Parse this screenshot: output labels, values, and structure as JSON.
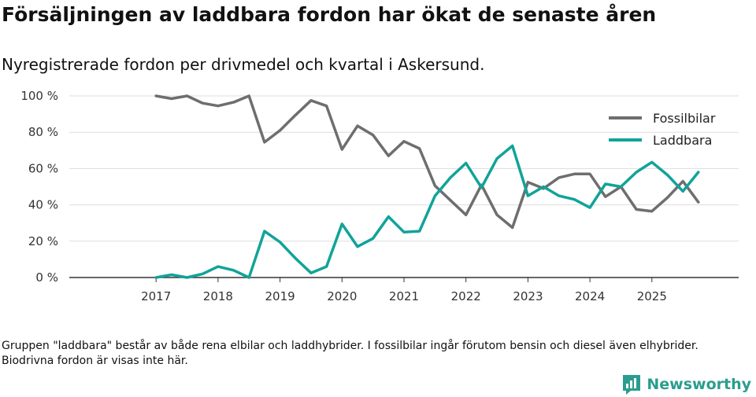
{
  "header": {
    "title": "Försäljningen av laddbara fordon har ökat de senaste åren",
    "subtitle": "Nyregistrerade fordon per drivmedel och kvartal i Askersund."
  },
  "footnote": "Gruppen \"laddbara\" består av både rena elbilar och laddhybrider. I fossilbilar ingår förutom bensin och diesel även elhybrider. Biodrivna fordon är visas inte här.",
  "brand": {
    "name": "Newsworthy",
    "icon": "newsworthy-logo-icon"
  },
  "colors": {
    "fossil": "#6e6e6e",
    "laddbara": "#11a399",
    "grid": "#dddddd",
    "axis": "#333333",
    "brand": "#2a9d8f"
  },
  "chart_data": {
    "type": "line",
    "title": "Försäljningen av laddbara fordon har ökat de senaste åren",
    "subtitle": "Nyregistrerade fordon per drivmedel och kvartal i Askersund.",
    "xlabel": "",
    "ylabel": "",
    "x_start": 2017,
    "x_step": 0.25,
    "xticks": [
      2017,
      2018,
      2019,
      2020,
      2021,
      2022,
      2023,
      2024,
      2025
    ],
    "xtick_labels": [
      "2017",
      "2018",
      "2019",
      "2020",
      "2021",
      "2022",
      "2023",
      "2024",
      "2025"
    ],
    "xlim": [
      2015.6,
      2026.4
    ],
    "ylim": [
      0,
      100
    ],
    "yticks": [
      0,
      20,
      40,
      60,
      80,
      100
    ],
    "ytick_labels": [
      "0 %",
      "20 %",
      "40 %",
      "60 %",
      "80 %",
      "100 %"
    ],
    "grid": true,
    "legend_position": "top-right",
    "series": [
      {
        "name": "Fossilbilar",
        "color": "#6e6e6e",
        "values": [
          100,
          98.5,
          100,
          96,
          94.5,
          96.5,
          100,
          74.5,
          81,
          89.5,
          97.5,
          94.5,
          70.5,
          83.5,
          78.5,
          67,
          75,
          71,
          50.5,
          42.5,
          34.5,
          51,
          34.5,
          27.5,
          52.5,
          49,
          55,
          57,
          57,
          44.5,
          50,
          37.5,
          36.5,
          44,
          53,
          41.5
        ]
      },
      {
        "name": "Laddbara",
        "color": "#11a399",
        "values": [
          0,
          1.5,
          0,
          2,
          6,
          4,
          0,
          25.5,
          19.5,
          10.5,
          2.5,
          6,
          29.5,
          17,
          21.5,
          33.5,
          25,
          25.5,
          45,
          55,
          63,
          49.5,
          65.5,
          72.5,
          45,
          50,
          45,
          43,
          38.5,
          51.5,
          50,
          58,
          63.5,
          56.5,
          47.5,
          58
        ]
      }
    ]
  }
}
